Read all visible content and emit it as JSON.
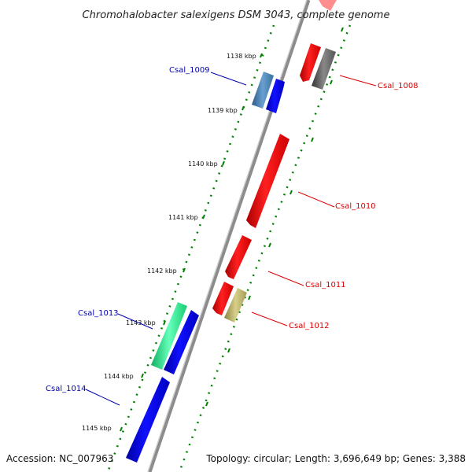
{
  "title": "Chromohalobacter salexigens DSM 3043, complete genome",
  "ticks": [
    "1138 kbp",
    "1139 kbp",
    "1140 kbp",
    "1141 kbp",
    "1142 kbp",
    "1143 kbp",
    "1144 kbp",
    "1145 kbp"
  ],
  "genes": {
    "csal_1008": {
      "label": "Csal_1008",
      "color": "#dd0000"
    },
    "csal_1009": {
      "label": "Csal_1009",
      "color": "#0000aa"
    },
    "csal_1010": {
      "label": "Csal_1010",
      "color": "#dd0000"
    },
    "csal_1011": {
      "label": "Csal_1011",
      "color": "#dd0000"
    },
    "csal_1012": {
      "label": "Csal_1012",
      "color": "#dd0000"
    },
    "csal_1013": {
      "label": "Csal_1013",
      "color": "#0000aa"
    },
    "csal_1014": {
      "label": "Csal_1014",
      "color": "#0000aa"
    }
  },
  "colors": {
    "forward_red": "#ff0000",
    "reverse_blue": "#0000ee",
    "steel_blue": "#4682b4",
    "gray": "#666666",
    "khaki": "#bdb76b",
    "aquamarine": "#22ee88",
    "tick_green": "#008000",
    "backbone": "#8c8c8c"
  },
  "footer": {
    "accession": "Accession: NC_007963",
    "topology": "Topology: circular; Length: 3,696,649 bp; Genes: 3,388"
  }
}
